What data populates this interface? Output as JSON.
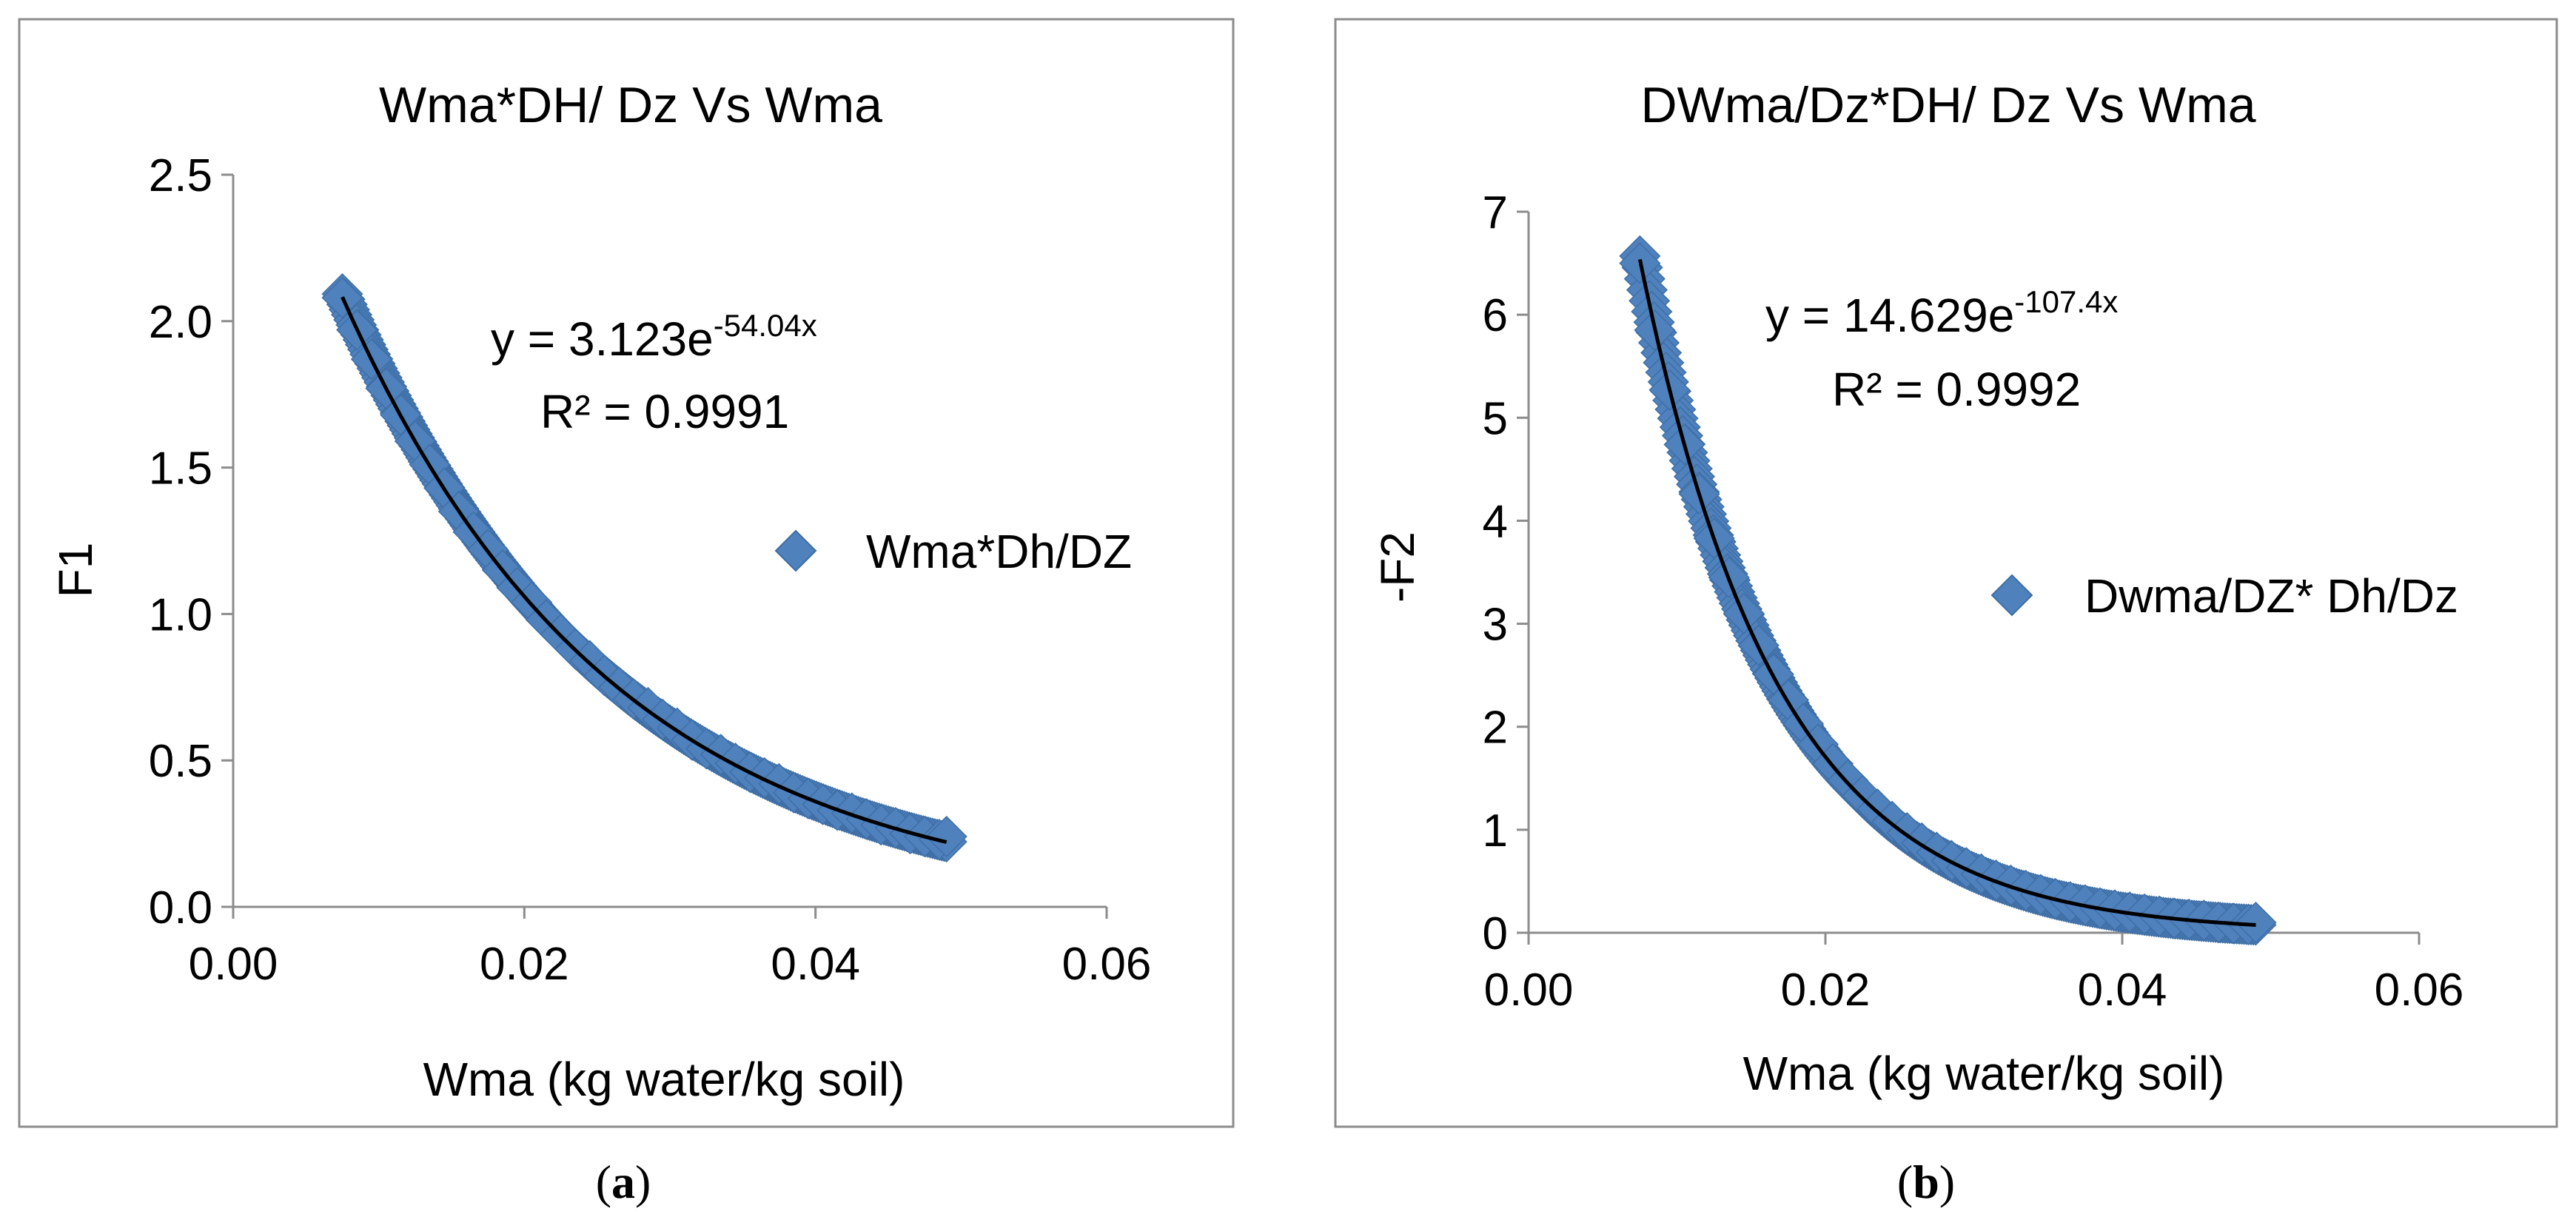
{
  "chart_data": [
    {
      "type": "scatter",
      "panel_label": "a",
      "title": "Wma*DH/ Dz Vs Wma",
      "xlabel": "Wma (kg water/kg soil)",
      "ylabel": "F1",
      "xlim": [
        0,
        0.06
      ],
      "ylim": [
        0,
        2.5
      ],
      "x_ticks": [
        0,
        0.02,
        0.04,
        0.06
      ],
      "x_tick_labels": [
        "0.00",
        "0.02",
        "0.04",
        "0.06"
      ],
      "y_ticks": [
        0,
        0.5,
        1,
        1.5,
        2,
        2.5
      ],
      "y_tick_labels": [
        "0.0",
        "0.5",
        "1.0",
        "1.5",
        "2.0",
        "2.5"
      ],
      "grid": false,
      "legend_position": "right",
      "series": [
        {
          "name": "Wma*Dh/DZ",
          "marker": "diamond",
          "color": "#4F81BD",
          "x_range": [
            0.0075,
            0.049
          ],
          "x": [
            0.0075,
            0.0085,
            0.0095,
            0.0105,
            0.0115,
            0.0125,
            0.0135,
            0.0145,
            0.0155,
            0.0165,
            0.0175,
            0.0185,
            0.0195,
            0.0205,
            0.0215,
            0.0225,
            0.0235,
            0.0245,
            0.0255,
            0.0265,
            0.0275,
            0.0285,
            0.0295,
            0.0305,
            0.0315,
            0.0325,
            0.0335,
            0.0345,
            0.0355,
            0.0365,
            0.0375,
            0.0385,
            0.0395,
            0.0405,
            0.0415,
            0.0425,
            0.0435,
            0.0445,
            0.0455,
            0.0465,
            0.0475,
            0.0485,
            0.049
          ],
          "y": [
            2.08,
            1.97,
            1.87,
            1.77,
            1.68,
            1.59,
            1.51,
            1.43,
            1.35,
            1.28,
            1.22,
            1.15,
            1.09,
            1.04,
            0.98,
            0.93,
            0.88,
            0.84,
            0.79,
            0.75,
            0.71,
            0.68,
            0.64,
            0.61,
            0.57,
            0.54,
            0.52,
            0.49,
            0.46,
            0.44,
            0.42,
            0.39,
            0.37,
            0.35,
            0.33,
            0.32,
            0.3,
            0.28,
            0.27,
            0.25,
            0.24,
            0.23,
            0.24
          ]
        }
      ],
      "trendline": {
        "type": "exponential",
        "a": 3.123,
        "b": -54.04,
        "x_range": [
          0.0075,
          0.049
        ],
        "color": "#000000",
        "equation_base": "y = 3.123e",
        "equation_exponent": "-54.04x",
        "r_squared_label": "R² = 0.9991"
      }
    },
    {
      "type": "scatter",
      "panel_label": "b",
      "title": "DWma/Dz*DH/ Dz Vs Wma",
      "xlabel": "Wma (kg water/kg soil)",
      "ylabel": "-F2",
      "xlim": [
        0,
        0.06
      ],
      "ylim": [
        0,
        7
      ],
      "x_ticks": [
        0,
        0.02,
        0.04,
        0.06
      ],
      "x_tick_labels": [
        "0.00",
        "0.02",
        "0.04",
        "0.06"
      ],
      "y_ticks": [
        0,
        1,
        2,
        3,
        4,
        5,
        6,
        7
      ],
      "y_tick_labels": [
        "0",
        "1",
        "2",
        "3",
        "4",
        "5",
        "6",
        "7"
      ],
      "grid": false,
      "legend_position": "right",
      "series": [
        {
          "name": "Dwma/DZ* Dh/Dz",
          "marker": "diamond",
          "color": "#4F81BD",
          "x_range": [
            0.0075,
            0.049
          ],
          "x": [
            0.0075,
            0.0085,
            0.0095,
            0.0105,
            0.0115,
            0.0125,
            0.0135,
            0.0145,
            0.0155,
            0.0165,
            0.0175,
            0.0185,
            0.0195,
            0.0205,
            0.0215,
            0.0225,
            0.0235,
            0.0245,
            0.0255,
            0.0265,
            0.0275,
            0.0285,
            0.0295,
            0.0305,
            0.0315,
            0.0325,
            0.0335,
            0.0345,
            0.0355,
            0.0365,
            0.0375,
            0.0385,
            0.0395,
            0.0405,
            0.0415,
            0.0425,
            0.0435,
            0.0445,
            0.0455,
            0.0465,
            0.0475,
            0.0485,
            0.049
          ],
          "y": [
            6.5,
            5.85,
            5.27,
            4.74,
            4.26,
            3.83,
            3.45,
            3.1,
            2.79,
            2.51,
            2.26,
            2.03,
            1.83,
            1.64,
            1.48,
            1.33,
            1.2,
            1.08,
            0.97,
            0.87,
            0.78,
            0.7,
            0.63,
            0.57,
            0.51,
            0.46,
            0.41,
            0.37,
            0.33,
            0.3,
            0.27,
            0.24,
            0.22,
            0.2,
            0.18,
            0.16,
            0.14,
            0.13,
            0.12,
            0.1,
            0.09,
            0.08,
            0.1
          ]
        }
      ],
      "trendline": {
        "type": "exponential",
        "a": 14.629,
        "b": -107.4,
        "x_range": [
          0.0075,
          0.049
        ],
        "color": "#000000",
        "equation_base": "y = 14.629e",
        "equation_exponent": "-107.4x",
        "r_squared_label": "R² = 0.9992"
      }
    }
  ]
}
